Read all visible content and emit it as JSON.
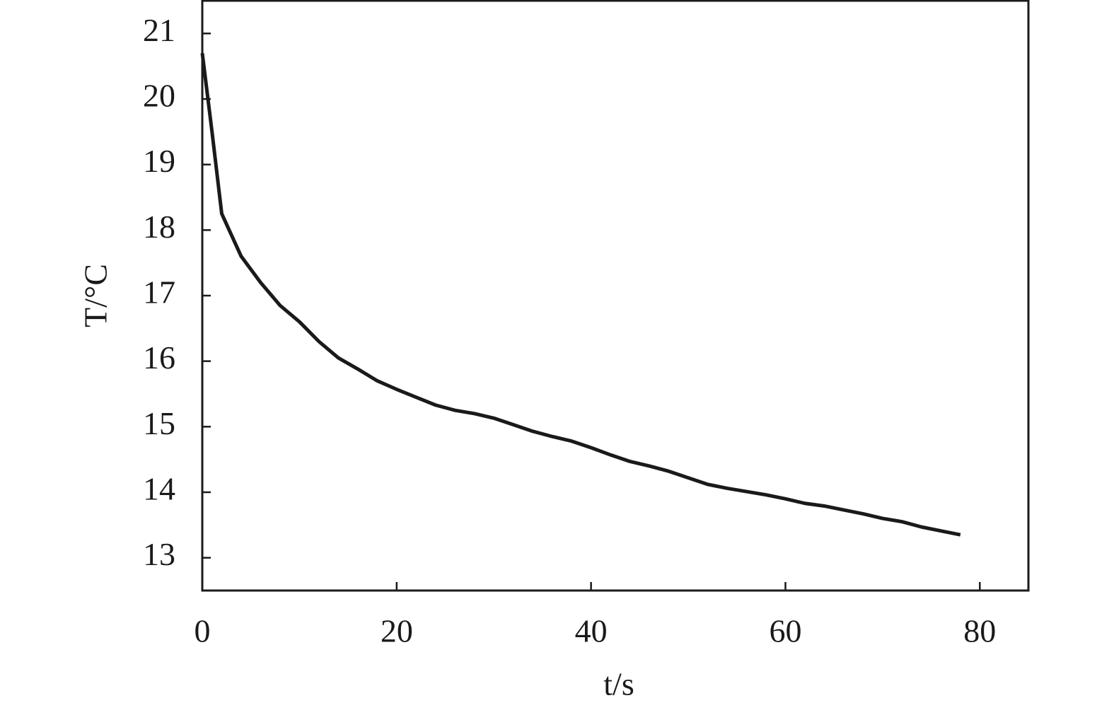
{
  "chart_data": {
    "type": "line",
    "xlabel": "t/s",
    "ylabel": "T/°C",
    "x": [
      0,
      1,
      2,
      4,
      6,
      8,
      10,
      12,
      14,
      16,
      18,
      20,
      22,
      24,
      26,
      28,
      30,
      32,
      34,
      36,
      38,
      40,
      42,
      44,
      46,
      48,
      50,
      52,
      54,
      56,
      58,
      60,
      62,
      64,
      66,
      68,
      70,
      72,
      74,
      76,
      78
    ],
    "series": [
      {
        "color": "#1a1a1a",
        "values": [
          20.7,
          19.5,
          18.25,
          17.6,
          17.2,
          16.85,
          16.6,
          16.3,
          16.05,
          15.88,
          15.7,
          15.57,
          15.45,
          15.33,
          15.25,
          15.2,
          15.13,
          15.03,
          14.93,
          14.85,
          14.78,
          14.68,
          14.57,
          14.47,
          14.4,
          14.32,
          14.22,
          14.12,
          14.06,
          14.01,
          13.96,
          13.9,
          13.83,
          13.79,
          13.73,
          13.67,
          13.6,
          13.55,
          13.47,
          13.41,
          13.35
        ]
      }
    ],
    "xlim": [
      0,
      85
    ],
    "xticks": [
      0,
      20,
      40,
      60,
      80
    ],
    "ylim": [
      12.5,
      21.5
    ],
    "yticks": [
      13,
      14,
      15,
      16,
      17,
      18,
      19,
      20,
      21
    ]
  }
}
